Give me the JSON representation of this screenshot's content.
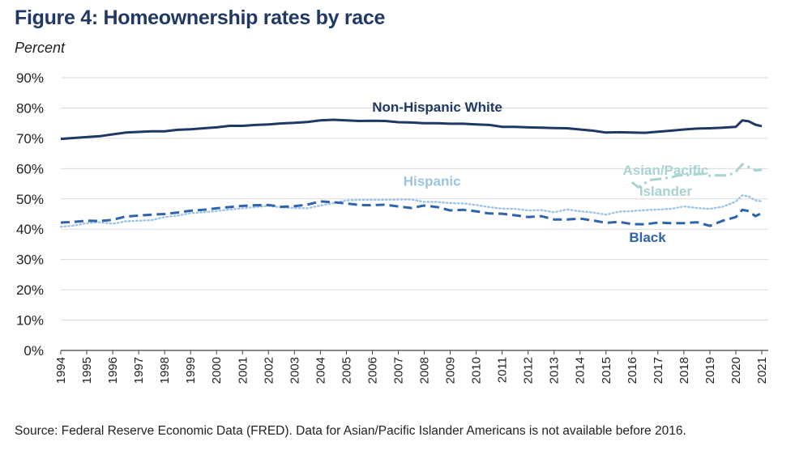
{
  "header": {
    "title": "Figure 4: Homeownership rates by race",
    "unit_label": "Percent"
  },
  "footer": {
    "source": "Source: Federal Reserve Economic Data (FRED). Data for Asian/Pacific Islander Americans is not available before 2016."
  },
  "colors": {
    "title": "#1f3864",
    "white": "#1f3864",
    "black": "#2e63ad",
    "hispanic": "#9dc3e6",
    "asian": "#a7d3d3",
    "grid": "#d9d9d9",
    "axis": "#404040"
  },
  "chart_data": {
    "type": "line",
    "title": "Figure 4: Homeownership rates by race",
    "ylabel": "Percent",
    "xlabel": "",
    "xlim": [
      1994,
      2021.25
    ],
    "ylim": [
      0,
      90
    ],
    "y_ticks": [
      0,
      10,
      20,
      30,
      40,
      50,
      60,
      70,
      80,
      90
    ],
    "y_tick_labels": [
      "0%",
      "10%",
      "20%",
      "30%",
      "40%",
      "50%",
      "60%",
      "70%",
      "80%",
      "90%"
    ],
    "x_ticks": [
      1994,
      1995,
      1996,
      1997,
      1998,
      1999,
      2000,
      2001,
      2002,
      2003,
      2004,
      2005,
      2006,
      2007,
      2008,
      2009,
      2010,
      2011,
      2012,
      2013,
      2014,
      2015,
      2016,
      2017,
      2018,
      2019,
      2020,
      2021
    ],
    "x_tick_labels": [
      "1994",
      "1995",
      "1996",
      "1997",
      "1998",
      "1999",
      "2000",
      "2001",
      "2002",
      "2003",
      "2004",
      "2005",
      "2006",
      "2007",
      "2008",
      "2009",
      "2010",
      "2011",
      "2012",
      "2013",
      "2014",
      "2015",
      "2016",
      "2017",
      "2018",
      "2019",
      "2020",
      "2021"
    ],
    "grid": "horizontal",
    "legend": "inline labels",
    "series": [
      {
        "name": "Non-Hispanic White",
        "style": "solid",
        "color": "#1f3864",
        "label_anchor": [
          2008.5,
          78.8
        ],
        "points": [
          [
            1994,
            69.8
          ],
          [
            1994.5,
            70.1
          ],
          [
            1995,
            70.4
          ],
          [
            1995.5,
            70.7
          ],
          [
            1996,
            71.3
          ],
          [
            1996.5,
            71.9
          ],
          [
            1997,
            72.1
          ],
          [
            1997.5,
            72.3
          ],
          [
            1998,
            72.3
          ],
          [
            1998.5,
            72.8
          ],
          [
            1999,
            73.0
          ],
          [
            1999.5,
            73.3
          ],
          [
            2000,
            73.6
          ],
          [
            2000.5,
            74.1
          ],
          [
            2001,
            74.1
          ],
          [
            2001.5,
            74.4
          ],
          [
            2002,
            74.6
          ],
          [
            2002.5,
            74.9
          ],
          [
            2003,
            75.1
          ],
          [
            2003.5,
            75.4
          ],
          [
            2004,
            75.9
          ],
          [
            2004.5,
            76.1
          ],
          [
            2005,
            75.9
          ],
          [
            2005.5,
            75.7
          ],
          [
            2006,
            75.8
          ],
          [
            2006.5,
            75.7
          ],
          [
            2007,
            75.3
          ],
          [
            2007.5,
            75.2
          ],
          [
            2008,
            75.0
          ],
          [
            2008.5,
            75.0
          ],
          [
            2009,
            74.8
          ],
          [
            2009.5,
            74.8
          ],
          [
            2010,
            74.6
          ],
          [
            2010.5,
            74.4
          ],
          [
            2011,
            73.8
          ],
          [
            2011.5,
            73.8
          ],
          [
            2012,
            73.6
          ],
          [
            2012.5,
            73.5
          ],
          [
            2013,
            73.4
          ],
          [
            2013.5,
            73.3
          ],
          [
            2014,
            72.9
          ],
          [
            2014.5,
            72.5
          ],
          [
            2015,
            71.9
          ],
          [
            2015.5,
            72.0
          ],
          [
            2016,
            71.9
          ],
          [
            2016.5,
            71.8
          ],
          [
            2017,
            72.2
          ],
          [
            2017.5,
            72.5
          ],
          [
            2018,
            72.9
          ],
          [
            2018.5,
            73.2
          ],
          [
            2019,
            73.3
          ],
          [
            2019.5,
            73.5
          ],
          [
            2020,
            73.8
          ],
          [
            2020.25,
            75.9
          ],
          [
            2020.5,
            75.6
          ],
          [
            2020.75,
            74.5
          ],
          [
            2021,
            74.0
          ]
        ]
      },
      {
        "name": "Asian/Pacific Islander",
        "label_lines": [
          "Asian/Pacific",
          "Islander"
        ],
        "style": "dash-dot",
        "color": "#a7d3d3",
        "label_anchor": [
          2017.3,
          58.0
        ],
        "points": [
          [
            2016,
            55.5
          ],
          [
            2016.25,
            53.8
          ],
          [
            2016.5,
            55.2
          ],
          [
            2016.75,
            56.3
          ],
          [
            2017,
            56.5
          ],
          [
            2017.25,
            56.8
          ],
          [
            2017.5,
            57.1
          ],
          [
            2017.75,
            57.7
          ],
          [
            2018,
            57.9
          ],
          [
            2018.25,
            57.8
          ],
          [
            2018.5,
            58.2
          ],
          [
            2018.75,
            58.3
          ],
          [
            2019,
            57.6
          ],
          [
            2019.25,
            57.8
          ],
          [
            2019.5,
            57.7
          ],
          [
            2019.75,
            57.9
          ],
          [
            2020,
            59.0
          ],
          [
            2020.25,
            61.4
          ],
          [
            2020.5,
            60.5
          ],
          [
            2020.75,
            59.4
          ],
          [
            2021,
            59.6
          ]
        ]
      },
      {
        "name": "Hispanic",
        "style": "dotted",
        "color": "#9dc3e6",
        "label_anchor": [
          2008.3,
          54.3
        ],
        "points": [
          [
            1994,
            40.8
          ],
          [
            1994.5,
            41.2
          ],
          [
            1995,
            42.0
          ],
          [
            1995.5,
            42.3
          ],
          [
            1996,
            41.8
          ],
          [
            1996.5,
            42.6
          ],
          [
            1997,
            42.8
          ],
          [
            1997.5,
            43.0
          ],
          [
            1998,
            44.0
          ],
          [
            1998.5,
            44.5
          ],
          [
            1999,
            45.3
          ],
          [
            1999.5,
            45.6
          ],
          [
            2000,
            46.0
          ],
          [
            2000.5,
            46.5
          ],
          [
            2001,
            46.9
          ],
          [
            2001.5,
            47.3
          ],
          [
            2002,
            47.7
          ],
          [
            2002.5,
            47.2
          ],
          [
            2003,
            47.0
          ],
          [
            2003.5,
            46.9
          ],
          [
            2004,
            47.8
          ],
          [
            2004.5,
            48.6
          ],
          [
            2005,
            49.5
          ],
          [
            2005.5,
            49.7
          ],
          [
            2006,
            49.7
          ],
          [
            2006.5,
            49.7
          ],
          [
            2007,
            49.8
          ],
          [
            2007.5,
            49.8
          ],
          [
            2008,
            49.0
          ],
          [
            2008.5,
            49.0
          ],
          [
            2009,
            48.6
          ],
          [
            2009.5,
            48.5
          ],
          [
            2010,
            48.0
          ],
          [
            2010.5,
            47.3
          ],
          [
            2011,
            46.8
          ],
          [
            2011.5,
            46.7
          ],
          [
            2012,
            46.2
          ],
          [
            2012.5,
            46.3
          ],
          [
            2013,
            45.6
          ],
          [
            2013.5,
            46.5
          ],
          [
            2014,
            45.9
          ],
          [
            2014.5,
            45.5
          ],
          [
            2015,
            44.8
          ],
          [
            2015.5,
            45.8
          ],
          [
            2016,
            46.0
          ],
          [
            2016.5,
            46.3
          ],
          [
            2017,
            46.5
          ],
          [
            2017.5,
            46.7
          ],
          [
            2018,
            47.5
          ],
          [
            2018.5,
            47.0
          ],
          [
            2019,
            46.7
          ],
          [
            2019.5,
            47.4
          ],
          [
            2020,
            49.1
          ],
          [
            2020.25,
            51.2
          ],
          [
            2020.5,
            50.8
          ],
          [
            2020.75,
            49.5
          ],
          [
            2021,
            49.2
          ]
        ]
      },
      {
        "name": "Black",
        "style": "dashed",
        "color": "#2e63ad",
        "label_anchor": [
          2016.6,
          35.8
        ],
        "points": [
          [
            1994,
            42.2
          ],
          [
            1994.5,
            42.4
          ],
          [
            1995,
            42.8
          ],
          [
            1995.5,
            42.7
          ],
          [
            1996,
            43.1
          ],
          [
            1996.5,
            44.2
          ],
          [
            1997,
            44.5
          ],
          [
            1997.5,
            44.8
          ],
          [
            1998,
            45.0
          ],
          [
            1998.5,
            45.5
          ],
          [
            1999,
            46.1
          ],
          [
            1999.5,
            46.4
          ],
          [
            2000,
            46.9
          ],
          [
            2000.5,
            47.3
          ],
          [
            2001,
            47.7
          ],
          [
            2001.5,
            47.9
          ],
          [
            2002,
            48.0
          ],
          [
            2002.5,
            47.4
          ],
          [
            2003,
            47.6
          ],
          [
            2003.5,
            48.1
          ],
          [
            2004,
            49.2
          ],
          [
            2004.5,
            48.9
          ],
          [
            2005,
            48.5
          ],
          [
            2005.5,
            48.0
          ],
          [
            2006,
            47.9
          ],
          [
            2006.5,
            48.1
          ],
          [
            2007,
            47.5
          ],
          [
            2007.5,
            47.0
          ],
          [
            2008,
            47.8
          ],
          [
            2008.5,
            47.3
          ],
          [
            2009,
            46.2
          ],
          [
            2009.5,
            46.4
          ],
          [
            2010,
            45.9
          ],
          [
            2010.5,
            45.2
          ],
          [
            2011,
            45.1
          ],
          [
            2011.5,
            44.6
          ],
          [
            2012,
            44.0
          ],
          [
            2012.5,
            44.3
          ],
          [
            2013,
            43.2
          ],
          [
            2013.5,
            43.2
          ],
          [
            2014,
            43.5
          ],
          [
            2014.5,
            42.9
          ],
          [
            2015,
            42.1
          ],
          [
            2015.5,
            42.4
          ],
          [
            2016,
            41.7
          ],
          [
            2016.5,
            41.6
          ],
          [
            2017,
            42.2
          ],
          [
            2017.5,
            42.0
          ],
          [
            2018,
            42.0
          ],
          [
            2018.5,
            42.3
          ],
          [
            2019,
            41.1
          ],
          [
            2019.5,
            42.8
          ],
          [
            2020,
            44.0
          ],
          [
            2020.25,
            46.4
          ],
          [
            2020.5,
            46.0
          ],
          [
            2020.75,
            44.3
          ],
          [
            2021,
            45.3
          ]
        ]
      }
    ]
  }
}
